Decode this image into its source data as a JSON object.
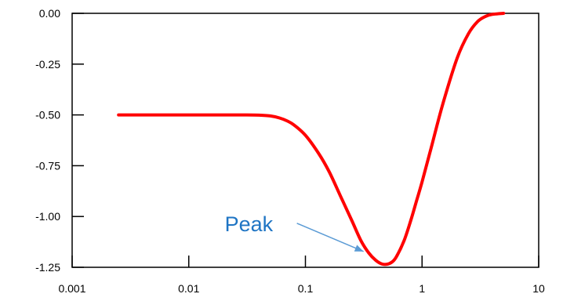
{
  "chart_data": {
    "type": "line",
    "title": "",
    "xlabel": "",
    "ylabel": "",
    "x_scale": "log",
    "xlim": [
      0.001,
      10
    ],
    "ylim": [
      -1.25,
      0.0
    ],
    "x_ticks": [
      0.001,
      0.01,
      0.1,
      1,
      10
    ],
    "x_tick_labels": [
      "0.001",
      "0.01",
      "0.1",
      "1",
      "10"
    ],
    "y_ticks": [
      0.0,
      -0.25,
      -0.5,
      -0.75,
      -1.0,
      -1.25
    ],
    "y_tick_labels": [
      "0.00",
      "-0.25",
      "-0.50",
      "-0.75",
      "-1.00",
      "-1.25"
    ],
    "grid": false,
    "legend": "none",
    "series": [
      {
        "color": "#ff0000",
        "x": [
          0.0025,
          0.005,
          0.01,
          0.02,
          0.03,
          0.04,
          0.05,
          0.06,
          0.07,
          0.08,
          0.1,
          0.13,
          0.16,
          0.2,
          0.25,
          0.3,
          0.35,
          0.4,
          0.45,
          0.5,
          0.55,
          0.6,
          0.7,
          0.8,
          0.9,
          1.0,
          1.2,
          1.5,
          2.0,
          2.5,
          3.0,
          3.5,
          4.0,
          5.0
        ],
        "y": [
          -0.5,
          -0.5,
          -0.5,
          -0.5,
          -0.5,
          -0.501,
          -0.505,
          -0.515,
          -0.53,
          -0.55,
          -0.6,
          -0.69,
          -0.78,
          -0.9,
          -1.02,
          -1.12,
          -1.18,
          -1.215,
          -1.233,
          -1.235,
          -1.225,
          -1.2,
          -1.12,
          -1.02,
          -0.92,
          -0.83,
          -0.66,
          -0.45,
          -0.22,
          -0.1,
          -0.04,
          -0.015,
          -0.005,
          0.0
        ]
      }
    ],
    "annotations": [
      {
        "text": "Peak",
        "color": "#1f75c4",
        "arrow_color": "#5b9bd5",
        "points_to": {
          "x": 0.33,
          "y": -1.18
        }
      }
    ]
  }
}
